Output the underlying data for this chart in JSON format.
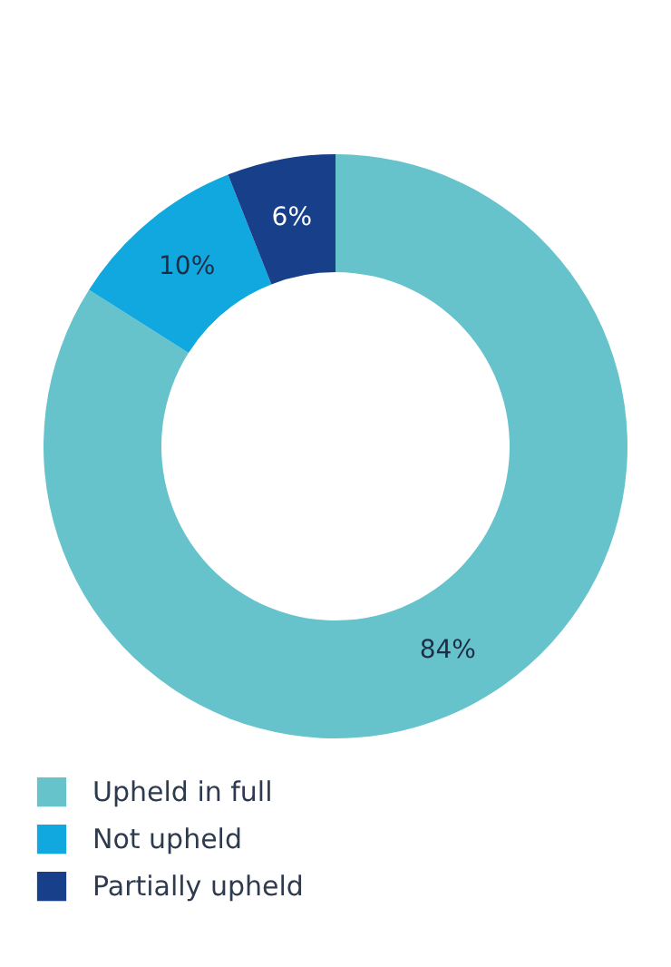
{
  "chart_data": {
    "type": "donut",
    "categories": [
      "Upheld in full",
      "Not upheld",
      "Partially upheld"
    ],
    "values": [
      84,
      10,
      6
    ],
    "colors": [
      "#66c3cc",
      "#10a8de",
      "#173f8a"
    ],
    "value_labels": [
      "84%",
      "10%",
      "6%"
    ],
    "legend": "bottom left"
  }
}
